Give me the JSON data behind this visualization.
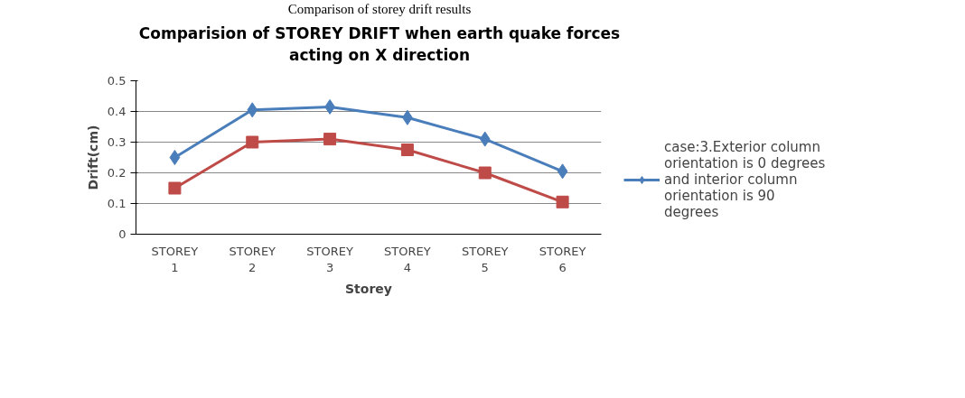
{
  "chart_data": {
    "type": "line",
    "title": "Comparision of STOREY DRIFT when earth quake forces acting on X direction",
    "xlabel": "Storey",
    "ylabel": "Drift(cm)",
    "annotations": [
      "Comparison of storey drift results"
    ],
    "categories": [
      "STOREY 1",
      "STOREY 2",
      "STOREY 3",
      "STOREY 4",
      "STOREY 5",
      "STOREY 6"
    ],
    "series": [
      {
        "name": "case:3.Exterior column orientation is 0 degrees and interior column orientation is 90 degrees",
        "color": "#4a7ebb",
        "marker": "diamond",
        "values": [
          0.25,
          0.405,
          0.415,
          0.38,
          0.31,
          0.205
        ]
      },
      {
        "color": "#be4b48",
        "marker": "square",
        "values": [
          0.15,
          0.3,
          0.31,
          0.275,
          0.2,
          0.105
        ]
      }
    ],
    "ylim": [
      0,
      0.5
    ],
    "yticks": [
      0,
      0.1,
      0.2,
      0.3,
      0.4,
      0.5
    ],
    "grid": "y",
    "legend": "right"
  }
}
